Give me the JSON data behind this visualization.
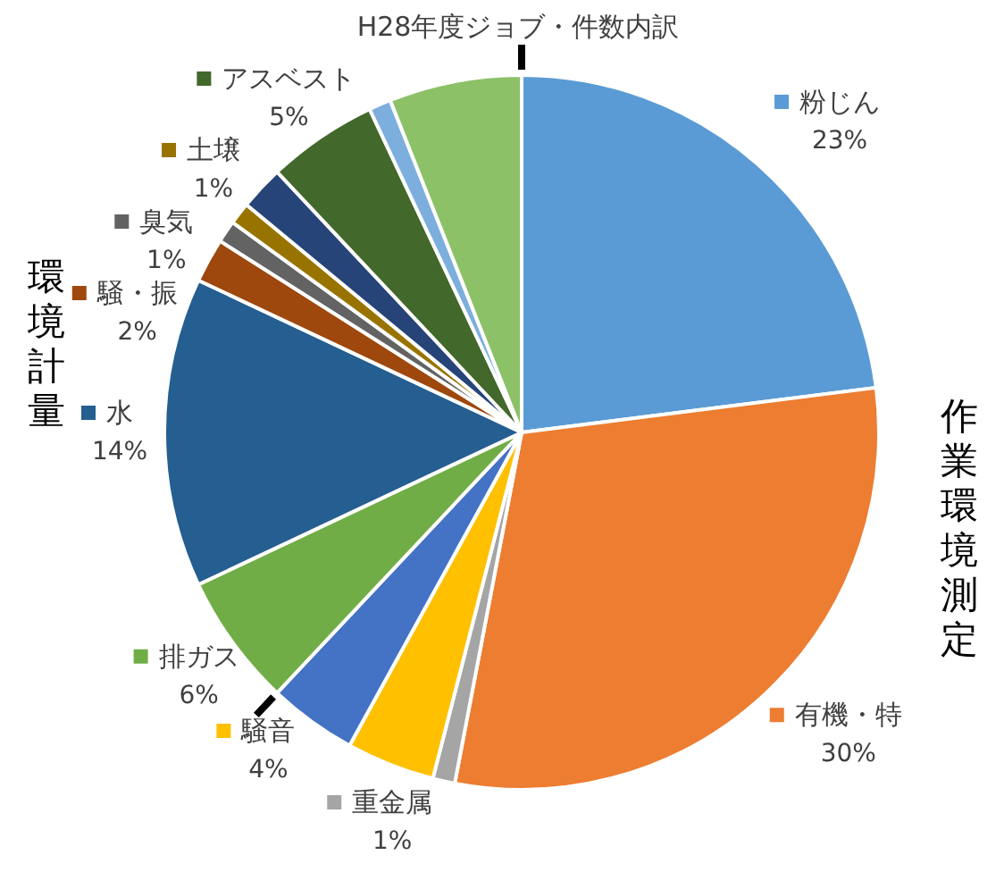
{
  "chart_data": {
    "type": "pie",
    "title": "H28年度ジョブ・件数内訳",
    "categories": [
      "粉じん",
      "有機・特",
      "重金属",
      "騒音",
      null,
      "排ガス",
      "水",
      "騒・振",
      "臭気",
      "土壌",
      null,
      "アスベスト",
      null,
      null
    ],
    "values": [
      23,
      30,
      1,
      4,
      4,
      6,
      14,
      2,
      1,
      1,
      2,
      5,
      1,
      6
    ],
    "colors": [
      "#5b9bd5",
      "#ed7d31",
      "#a5a5a5",
      "#ffc000",
      "#4472c4",
      "#70ad47",
      "#255e91",
      "#9e480e",
      "#636363",
      "#997300",
      "#264478",
      "#43682b",
      "#7cafdd",
      "#8cc168"
    ],
    "value_labels": [
      "23%",
      "30%",
      "1%",
      "4%",
      null,
      "6%",
      "14%",
      "2%",
      "1%",
      "1%",
      null,
      "5%",
      null,
      null
    ],
    "annotations": [
      "作業環境測定",
      "環境計量"
    ],
    "legend": "left"
  }
}
